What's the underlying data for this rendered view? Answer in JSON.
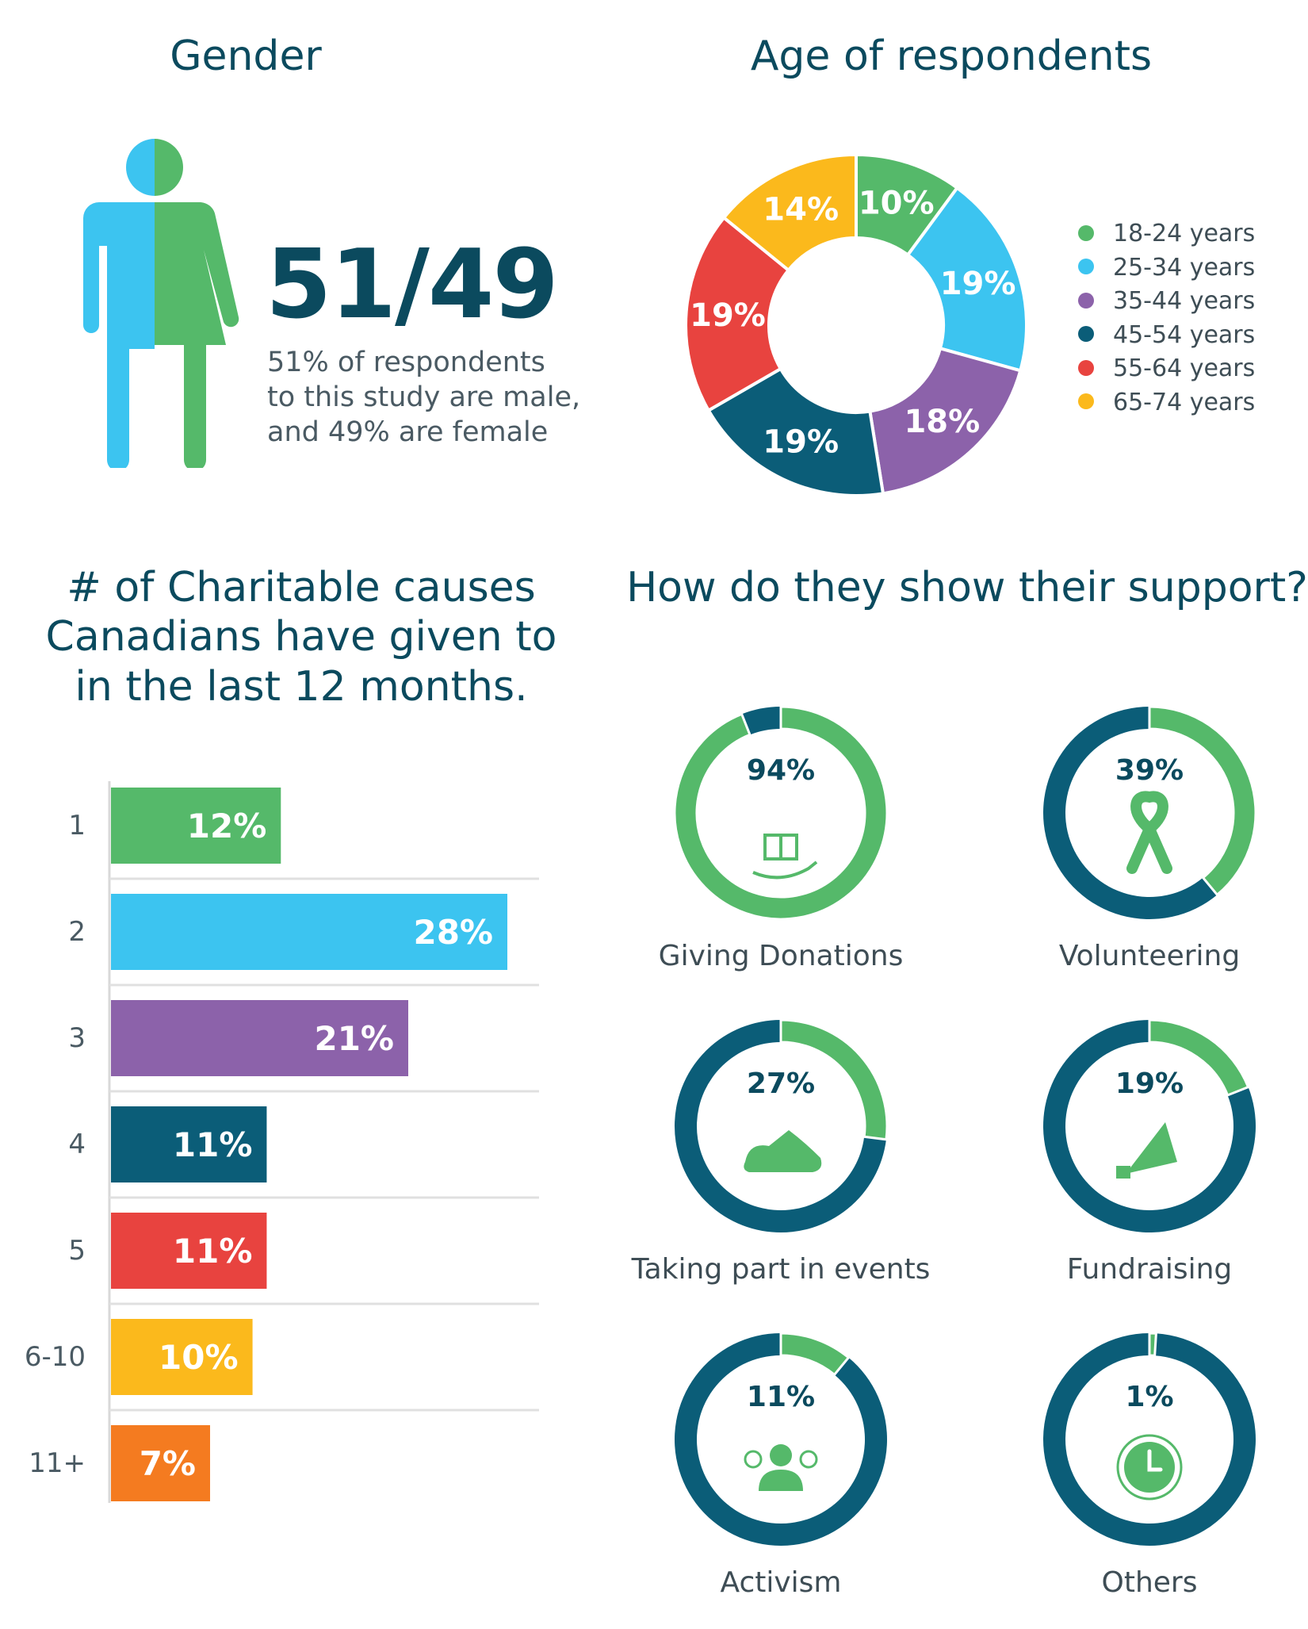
{
  "gender": {
    "title": "Gender",
    "ratio": "51/49",
    "description_lines": [
      "51% of respondents",
      "to this study are male,",
      "and 49% are female"
    ],
    "male_color": "#3cc4f0",
    "female_color": "#55b96a",
    "icon": "person-male-female-icon"
  },
  "chart_data": [
    {
      "type": "pie",
      "title": "Age of respondents",
      "donut": true,
      "legend_position": "right",
      "categories": [
        "18-24 years",
        "25-34 years",
        "35-44 years",
        "45-54 years",
        "55-64 years",
        "65-74 years"
      ],
      "values": [
        10,
        19,
        18,
        19,
        19,
        14
      ],
      "labels": [
        "10%",
        "19%",
        "18%",
        "19%",
        "19%",
        "14%"
      ],
      "colors": [
        "#55b96a",
        "#3cc4f0",
        "#8c62aa",
        "#0b5d78",
        "#e8433f",
        "#fbb91c"
      ]
    },
    {
      "type": "bar",
      "orientation": "horizontal",
      "title": "# of Charitable causes Canadians have given to in the last 12 months.",
      "title_lines": [
        "# of Charitable causes",
        "Canadians have given to",
        "in the last 12 months."
      ],
      "categories": [
        "1",
        "2",
        "3",
        "4",
        "5",
        "6-10",
        "11+"
      ],
      "values": [
        12,
        28,
        21,
        11,
        11,
        10,
        7
      ],
      "labels": [
        "12%",
        "28%",
        "21%",
        "11%",
        "11%",
        "10%",
        "7%"
      ],
      "colors": [
        "#55b96a",
        "#3cc4f0",
        "#8c62aa",
        "#0b5d78",
        "#e8433f",
        "#fbb91c",
        "#f47b20"
      ],
      "xlim": [
        0,
        28
      ]
    },
    {
      "type": "pie",
      "title": "How do they show their support?",
      "donut": true,
      "small_multiples": [
        {
          "name": "Giving Donations",
          "value": 94,
          "label": "94%",
          "icon": "gift-in-hand-icon"
        },
        {
          "name": "Volunteering",
          "value": 39,
          "label": "39%",
          "icon": "ribbon-icon"
        },
        {
          "name": "Taking part in events",
          "value": 27,
          "label": "27%",
          "icon": "running-shoe-icon"
        },
        {
          "name": "Fundraising",
          "value": 19,
          "label": "19%",
          "icon": "megaphone-icon"
        },
        {
          "name": "Activism",
          "value": 11,
          "label": "11%",
          "icon": "group-people-icon"
        },
        {
          "name": "Others",
          "value": 1,
          "label": "1%",
          "icon": "clock-icon"
        }
      ],
      "fill_color": "#55b96a",
      "remainder_color": "#0b5d78"
    }
  ]
}
